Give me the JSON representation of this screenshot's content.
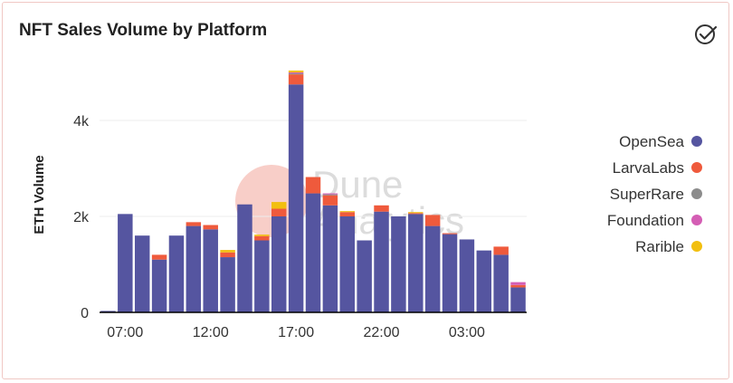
{
  "title": "NFT Sales Volume by Platform",
  "watermark": {
    "line1": "Dune",
    "line2": "Analytics"
  },
  "chart_data": {
    "type": "bar",
    "stacked": true,
    "ylabel": "ETH Volume",
    "xlabel": "",
    "ylim": [
      0,
      5000
    ],
    "yticks": [
      0,
      2000,
      4000
    ],
    "ytick_labels": [
      "0",
      "2k",
      "4k"
    ],
    "x_tick_labels": [
      {
        "index": 1,
        "label": "07:00"
      },
      {
        "index": 6,
        "label": "12:00"
      },
      {
        "index": 11,
        "label": "17:00"
      },
      {
        "index": 16,
        "label": "22:00"
      },
      {
        "index": 21,
        "label": "03:00"
      }
    ],
    "categories": [
      "06:00",
      "07:00",
      "08:00",
      "09:00",
      "10:00",
      "11:00",
      "12:00",
      "13:00",
      "14:00",
      "15:00",
      "16:00",
      "17:00",
      "18:00",
      "19:00",
      "20:00",
      "21:00",
      "22:00",
      "23:00",
      "00:00",
      "01:00",
      "02:00",
      "03:00",
      "04:00",
      "05:00",
      "06:00"
    ],
    "grid": true,
    "legend_position": "right",
    "series": [
      {
        "name": "OpenSea",
        "color": "#5555a0",
        "values": [
          30,
          2050,
          1600,
          1100,
          1600,
          1800,
          1730,
          1150,
          2250,
          1500,
          2000,
          4750,
          2480,
          2230,
          2000,
          1500,
          2100,
          2000,
          2050,
          1800,
          1630,
          1520,
          1290,
          1200,
          520
        ]
      },
      {
        "name": "LarvaLabs",
        "color": "#ef5a3c",
        "values": [
          0,
          0,
          0,
          100,
          0,
          80,
          90,
          100,
          0,
          90,
          160,
          210,
          340,
          210,
          90,
          0,
          130,
          0,
          20,
          230,
          20,
          0,
          0,
          170,
          50
        ]
      },
      {
        "name": "SuperRare",
        "color": "#8c8c8c",
        "values": [
          0,
          0,
          0,
          0,
          0,
          0,
          0,
          0,
          0,
          0,
          0,
          20,
          0,
          20,
          0,
          0,
          0,
          0,
          0,
          0,
          0,
          0,
          0,
          0,
          0
        ]
      },
      {
        "name": "Foundation",
        "color": "#d45eb4",
        "values": [
          0,
          0,
          0,
          0,
          0,
          0,
          0,
          0,
          0,
          0,
          0,
          20,
          0,
          20,
          0,
          0,
          0,
          0,
          0,
          0,
          0,
          0,
          0,
          0,
          60
        ]
      },
      {
        "name": "Rarible",
        "color": "#f2bf0f",
        "values": [
          0,
          0,
          0,
          0,
          0,
          0,
          0,
          50,
          0,
          30,
          140,
          40,
          0,
          0,
          20,
          0,
          0,
          0,
          20,
          0,
          0,
          0,
          0,
          0,
          0
        ]
      }
    ]
  },
  "colors": {
    "grid": "#ececec",
    "axis": "#000000",
    "accent": "#ef5a3c"
  }
}
